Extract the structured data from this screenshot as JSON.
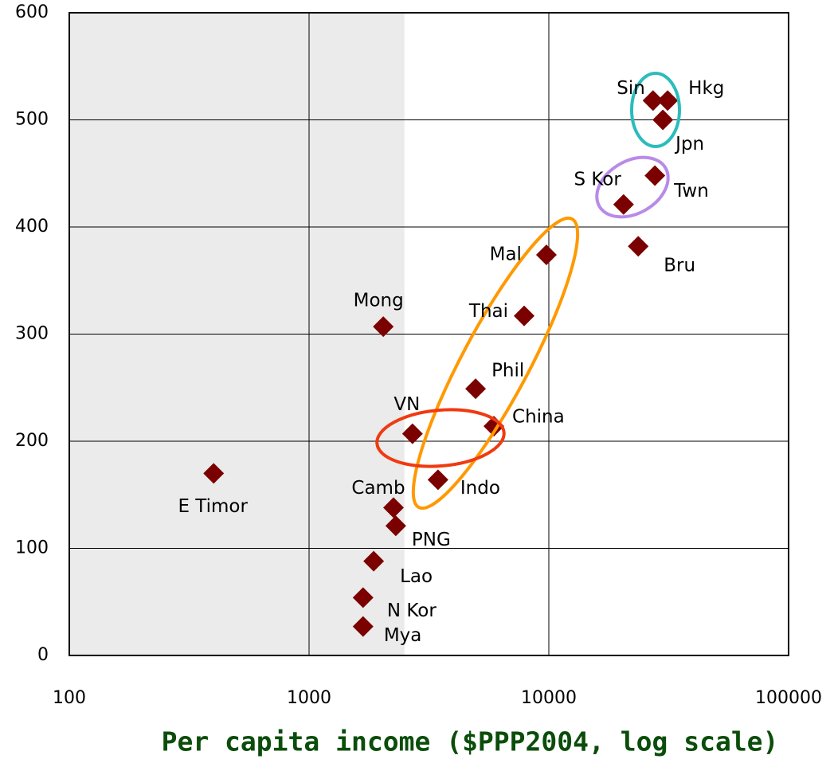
{
  "chart_data": {
    "type": "scatter",
    "x_label": "Per capita income ($PPP2004, log scale)",
    "labels": [
      "Sin",
      "Hkg",
      "Jpn",
      "Twn",
      "S Kor",
      "Bru",
      "Mal",
      "Thai",
      "Phil",
      "China",
      "VN",
      "Indo",
      "Mong",
      "E Timor",
      "Camb",
      "PNG",
      "Lao",
      "N Kor",
      "Mya"
    ],
    "x": [
      27200,
      31300,
      29900,
      27700,
      20500,
      23600,
      9770,
      7890,
      4950,
      5900,
      2700,
      3450,
      2040,
      400,
      2250,
      2300,
      1860,
      1680,
      1680
    ],
    "values": [
      518,
      518,
      500,
      448,
      421,
      382,
      374,
      317,
      249,
      214,
      207,
      164,
      307,
      170,
      138,
      121,
      88,
      54,
      27
    ],
    "color": "#7b0000",
    "x_log": true,
    "xlim": [
      100,
      100000
    ],
    "xticks": [
      100,
      1000,
      10000,
      100000
    ],
    "ylim": [
      0,
      600
    ],
    "yticks": [
      0,
      100,
      200,
      300,
      400,
      500,
      600
    ],
    "grid": true,
    "shaded_region": {
      "x": [
        100,
        2500
      ],
      "color": "#ebebeb"
    }
  }
}
